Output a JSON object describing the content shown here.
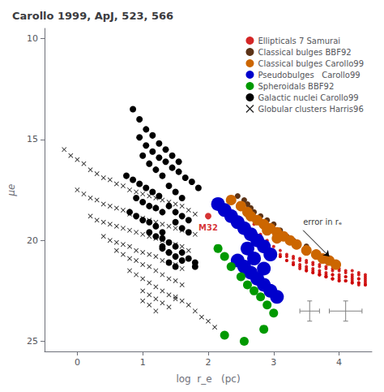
{
  "chart_data": {
    "type": "scatter",
    "title": "Carollo 1999, ApJ, 523, 566",
    "xlabel": "log  r_e   (pc)",
    "ylabel": "μe",
    "xlim": [
      -0.5,
      4.5
    ],
    "ylim": [
      25.5,
      9.5
    ],
    "xticks": [
      0,
      1,
      2,
      3,
      4
    ],
    "yticks": [
      10,
      15,
      20,
      25
    ],
    "grid": false,
    "legend": "upper right",
    "series": [
      {
        "name": "Ellipticals 7 Samurai",
        "color": "#cc0000",
        "marker": "point",
        "x": [
          2.6,
          2.7,
          2.8,
          2.9,
          3.0,
          3.1,
          3.2,
          3.3,
          3.4,
          3.5,
          3.6,
          3.7,
          3.8,
          3.9,
          4.0,
          4.1,
          4.2,
          4.3,
          4.4,
          2.7,
          2.8,
          2.9,
          3.0,
          3.1,
          3.2,
          3.3,
          3.4,
          3.5,
          3.6,
          3.7,
          3.8,
          3.9,
          4.0,
          4.1,
          4.2,
          4.3,
          4.4,
          2.9,
          3.0,
          3.1,
          3.2,
          3.3,
          3.4,
          3.5,
          3.6,
          3.7,
          3.8,
          3.9,
          4.0,
          4.1,
          4.2,
          4.3,
          4.4,
          3.1,
          3.2,
          3.3,
          3.4,
          3.5,
          3.6,
          3.7,
          3.8,
          3.9,
          4.0,
          4.1,
          4.2,
          4.3,
          4.4,
          3.3,
          3.4,
          3.5,
          3.6,
          3.7,
          3.8,
          3.9,
          4.0,
          4.1,
          4.2,
          4.3,
          4.4,
          3.5,
          3.6,
          3.7,
          3.8,
          3.9,
          4.0,
          4.1,
          4.2,
          4.3,
          4.4,
          3.7,
          3.8,
          3.9,
          4.0,
          4.1,
          4.2,
          4.3,
          4.4
        ],
        "y": [
          18.5,
          19.2,
          19.7,
          20.0,
          20.3,
          20.5,
          20.7,
          20.8,
          20.9,
          21.0,
          21.1,
          21.2,
          21.3,
          21.4,
          21.4,
          21.5,
          21.5,
          21.6,
          21.7,
          19.8,
          20.1,
          20.3,
          20.5,
          20.7,
          20.8,
          20.9,
          21.0,
          21.1,
          21.2,
          21.3,
          21.4,
          21.5,
          21.5,
          21.6,
          21.7,
          21.7,
          21.8,
          20.3,
          20.6,
          20.8,
          21.0,
          21.1,
          21.2,
          21.3,
          21.4,
          21.5,
          21.6,
          21.7,
          21.7,
          21.8,
          21.8,
          21.9,
          21.9,
          20.8,
          21.0,
          21.2,
          21.3,
          21.4,
          21.5,
          21.6,
          21.7,
          21.7,
          21.8,
          21.8,
          21.9,
          21.9,
          22.0,
          21.2,
          21.4,
          21.5,
          21.6,
          21.7,
          21.8,
          21.9,
          21.9,
          22.0,
          22.0,
          22.1,
          22.1,
          21.5,
          21.6,
          21.7,
          21.8,
          21.9,
          22.0,
          22.0,
          22.1,
          22.1,
          22.2,
          21.7,
          21.8,
          21.9,
          22.0,
          22.0,
          22.1,
          22.2,
          22.2
        ]
      },
      {
        "name": "Classical bulges BBF92",
        "color": "#5c3317",
        "marker": "circle",
        "x": [
          2.45,
          2.55,
          2.6,
          2.65,
          2.7,
          2.8,
          2.9,
          3.0,
          3.1,
          3.2,
          3.3,
          3.5,
          3.65,
          3.8
        ],
        "y": [
          17.8,
          18.0,
          18.2,
          18.4,
          18.6,
          18.8,
          19.0,
          19.2,
          19.5,
          19.8,
          20.0,
          20.3,
          20.6,
          21.0
        ]
      },
      {
        "name": "Classical bulges Carollo99",
        "color": "#cc6600",
        "marker": "circle",
        "x": [
          2.35,
          2.5,
          2.6,
          2.65,
          2.75,
          2.85,
          2.95,
          3.05,
          3.15,
          3.25,
          3.35,
          3.5,
          3.65,
          3.75,
          3.85,
          3.95,
          2.9,
          3.05
        ],
        "y": [
          18.0,
          18.3,
          18.6,
          18.8,
          19.0,
          19.2,
          19.4,
          19.6,
          19.8,
          20.0,
          20.2,
          20.5,
          20.7,
          20.9,
          21.0,
          21.2,
          19.5,
          19.9
        ]
      },
      {
        "name": "Pseudobulges   Carollo99",
        "color": "#0000cc",
        "marker": "circle",
        "x": [
          2.15,
          2.25,
          2.35,
          2.45,
          2.55,
          2.65,
          2.75,
          2.85,
          2.95,
          2.45,
          2.55,
          2.65,
          2.75,
          2.85,
          2.95,
          3.05,
          2.6,
          2.7,
          2.85
        ],
        "y": [
          18.2,
          18.5,
          18.8,
          19.1,
          19.4,
          19.7,
          20.0,
          20.3,
          20.7,
          21.0,
          21.3,
          21.6,
          21.9,
          22.2,
          22.5,
          22.8,
          20.4,
          20.9,
          21.4
        ]
      },
      {
        "name": "Spheroidals BBF92",
        "color": "#009900",
        "marker": "circle",
        "x": [
          2.15,
          2.25,
          2.35,
          2.5,
          2.6,
          2.7,
          2.8,
          2.9,
          3.0,
          2.25,
          2.85,
          2.55
        ],
        "y": [
          20.4,
          20.8,
          21.3,
          21.8,
          22.2,
          22.5,
          22.8,
          23.2,
          23.6,
          24.7,
          24.4,
          25.0
        ]
      },
      {
        "name": "Galactic nuclei Carollo99",
        "color": "black",
        "marker": "circle",
        "x": [
          0.85,
          0.95,
          1.05,
          1.15,
          1.25,
          1.35,
          1.45,
          1.55,
          1.0,
          1.1,
          1.2,
          1.3,
          0.75,
          0.85,
          0.95,
          1.05,
          1.15,
          1.25,
          1.4,
          1.5,
          1.6,
          0.9,
          1.0,
          1.1,
          1.2,
          1.3,
          1.4,
          1.5,
          1.6,
          1.7,
          0.8,
          0.9,
          1.0,
          1.1,
          1.2,
          1.3,
          1.5,
          1.6,
          1.7,
          1.1,
          1.2,
          1.3,
          1.4,
          1.5,
          1.6,
          1.3,
          1.4,
          1.5,
          1.6,
          1.8,
          1.4,
          1.5,
          0.95,
          1.05,
          1.15,
          1.25,
          1.35,
          1.45,
          1.55,
          1.65,
          1.75,
          1.85,
          1.3,
          1.4,
          1.7,
          1.8
        ],
        "y": [
          13.5,
          14.0,
          14.5,
          14.8,
          15.2,
          15.5,
          15.8,
          16.1,
          15.8,
          16.2,
          16.5,
          16.8,
          16.8,
          17.0,
          17.2,
          17.4,
          17.6,
          17.8,
          17.3,
          17.6,
          17.9,
          17.9,
          18.1,
          18.3,
          18.4,
          18.6,
          18.3,
          18.6,
          18.8,
          19.0,
          18.6,
          18.8,
          19.0,
          19.1,
          19.3,
          19.6,
          19.1,
          19.4,
          19.6,
          19.6,
          19.8,
          19.9,
          20.1,
          20.3,
          20.6,
          20.4,
          20.6,
          20.8,
          21.0,
          21.3,
          21.1,
          21.3,
          14.9,
          15.3,
          15.6,
          15.9,
          16.1,
          16.4,
          16.6,
          16.9,
          17.1,
          17.4,
          20.3,
          20.6,
          20.9,
          21.1
        ]
      },
      {
        "name": "Globular clusters Harris96",
        "color": "black",
        "marker": "x",
        "x": [
          -0.2,
          -0.1,
          0.0,
          0.1,
          0.2,
          0.3,
          0.4,
          0.5,
          0.6,
          0.7,
          0.8,
          0.9,
          1.0,
          1.1,
          1.2,
          1.3,
          1.4,
          1.5,
          1.6,
          1.7,
          1.8,
          0.0,
          0.1,
          0.2,
          0.3,
          0.4,
          0.5,
          0.6,
          0.7,
          0.8,
          0.9,
          1.0,
          1.1,
          1.2,
          1.3,
          1.4,
          1.5,
          1.6,
          1.7,
          1.8,
          0.2,
          0.3,
          0.4,
          0.5,
          0.6,
          0.7,
          0.8,
          0.9,
          1.0,
          1.1,
          1.2,
          1.3,
          1.4,
          1.5,
          1.6,
          1.7,
          0.4,
          0.5,
          0.6,
          0.7,
          0.8,
          0.9,
          1.0,
          1.1,
          1.2,
          1.3,
          1.4,
          1.5,
          1.6,
          0.6,
          0.7,
          0.8,
          0.9,
          1.0,
          1.1,
          1.2,
          1.3,
          1.4,
          1.5,
          1.6,
          0.8,
          0.9,
          1.0,
          1.1,
          1.2,
          1.3,
          1.4,
          1.5,
          1.0,
          1.1,
          1.2,
          1.3,
          1.4,
          1.0,
          1.1,
          1.2,
          1.5,
          1.6,
          1.7,
          1.8,
          1.9,
          2.0,
          2.1
        ],
        "y": [
          15.5,
          15.8,
          16.0,
          16.2,
          16.5,
          16.7,
          16.9,
          17.0,
          17.2,
          17.3,
          17.5,
          17.6,
          17.7,
          17.8,
          17.9,
          18.0,
          18.1,
          18.2,
          18.3,
          18.5,
          18.7,
          17.5,
          17.7,
          17.9,
          18.0,
          18.2,
          18.3,
          18.4,
          18.5,
          18.7,
          18.8,
          18.9,
          19.0,
          19.1,
          19.2,
          19.3,
          19.4,
          19.5,
          19.6,
          19.7,
          18.8,
          19.0,
          19.1,
          19.2,
          19.3,
          19.4,
          19.5,
          19.6,
          19.7,
          19.8,
          19.9,
          20.0,
          20.1,
          20.2,
          20.3,
          20.5,
          19.8,
          20.0,
          20.1,
          20.2,
          20.3,
          20.5,
          20.6,
          20.7,
          20.8,
          21.0,
          21.1,
          21.2,
          21.4,
          20.5,
          20.7,
          20.9,
          21.0,
          21.2,
          21.3,
          21.5,
          21.7,
          21.9,
          22.0,
          22.2,
          21.5,
          21.7,
          21.9,
          22.1,
          22.3,
          22.5,
          22.7,
          22.9,
          22.5,
          22.7,
          22.9,
          23.1,
          23.3,
          23.0,
          23.2,
          23.5,
          22.8,
          23.0,
          23.2,
          23.5,
          23.8,
          24.0,
          24.3
        ]
      }
    ],
    "error_bars": [
      {
        "x": 3.55,
        "y": 23.5,
        "xerr": 0.15,
        "yerr": 0.5
      },
      {
        "x": 4.1,
        "y": 23.5,
        "xerr": 0.25,
        "yerr": 0.5
      }
    ],
    "annotations": [
      {
        "text": "M32",
        "x": 2.0,
        "y": 18.8,
        "color": "#cc0000",
        "marker": "circle"
      },
      {
        "text": "error in rₑ",
        "x": 3.45,
        "y": 19.5,
        "arrow_to": [
          3.85,
          20.8
        ]
      }
    ]
  }
}
